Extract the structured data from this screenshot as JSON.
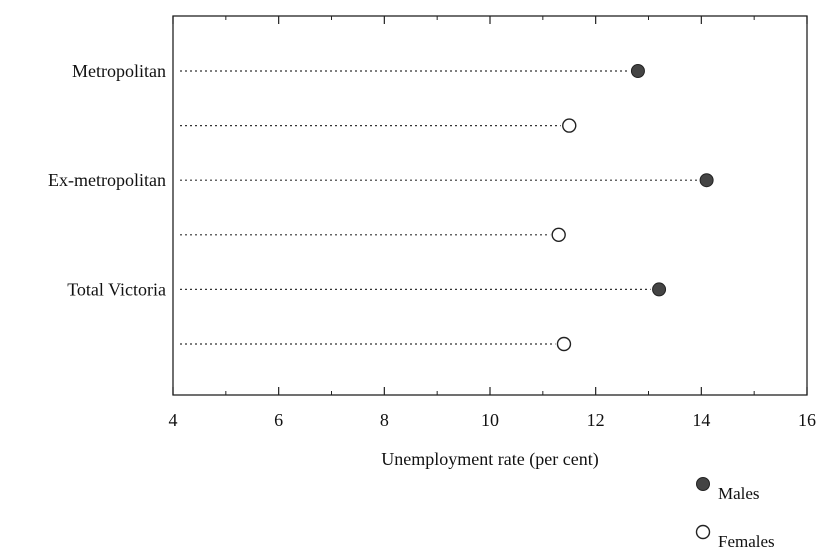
{
  "chart_data": {
    "type": "dot",
    "categories": [
      "Metropolitan",
      "Ex-metropolitan",
      "Total Victoria"
    ],
    "series": [
      {
        "name": "Males",
        "values": [
          12.8,
          14.1,
          13.2
        ],
        "color": "#444444",
        "marker": "filled-circle"
      },
      {
        "name": "Females",
        "values": [
          11.5,
          11.3,
          11.4
        ],
        "color": "#ffffff",
        "marker": "open-circle"
      }
    ],
    "xlabel": "Unemployment rate (per cent)",
    "xlim": [
      4,
      16
    ],
    "xticks": [
      4,
      6,
      8,
      10,
      12,
      14,
      16
    ],
    "legend_position": "bottom-right",
    "grid": false
  }
}
